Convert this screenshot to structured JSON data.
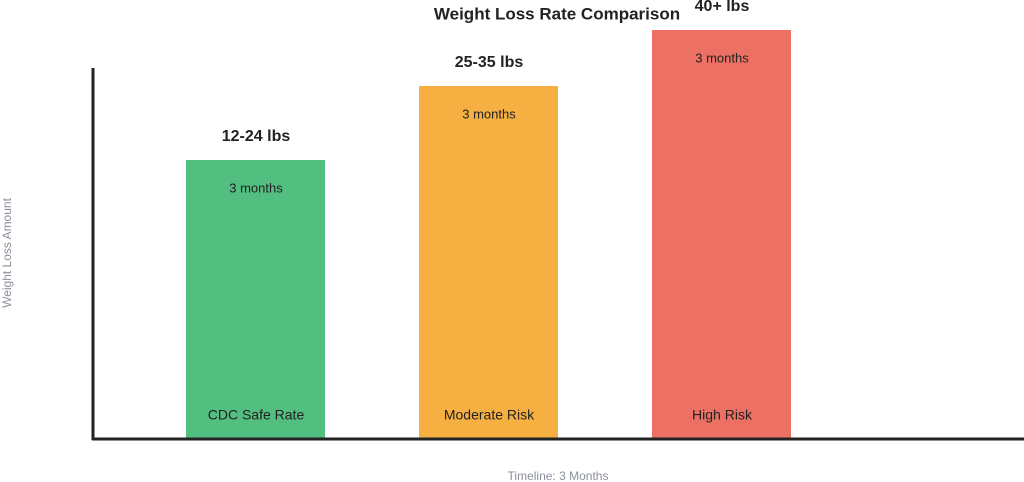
{
  "title": "Weight Loss Rate Comparison",
  "y_axis_label": "Weight Loss Amount",
  "x_axis_label": "Timeline: 3 Months",
  "bars": [
    {
      "label": "CDC Safe Rate",
      "amount": "12-24 lbs",
      "duration": "3 months"
    },
    {
      "label": "Moderate Risk",
      "amount": "25-35 lbs",
      "duration": "3 months"
    },
    {
      "label": "High Risk",
      "amount": "40+ lbs",
      "duration": "3 months"
    }
  ]
}
